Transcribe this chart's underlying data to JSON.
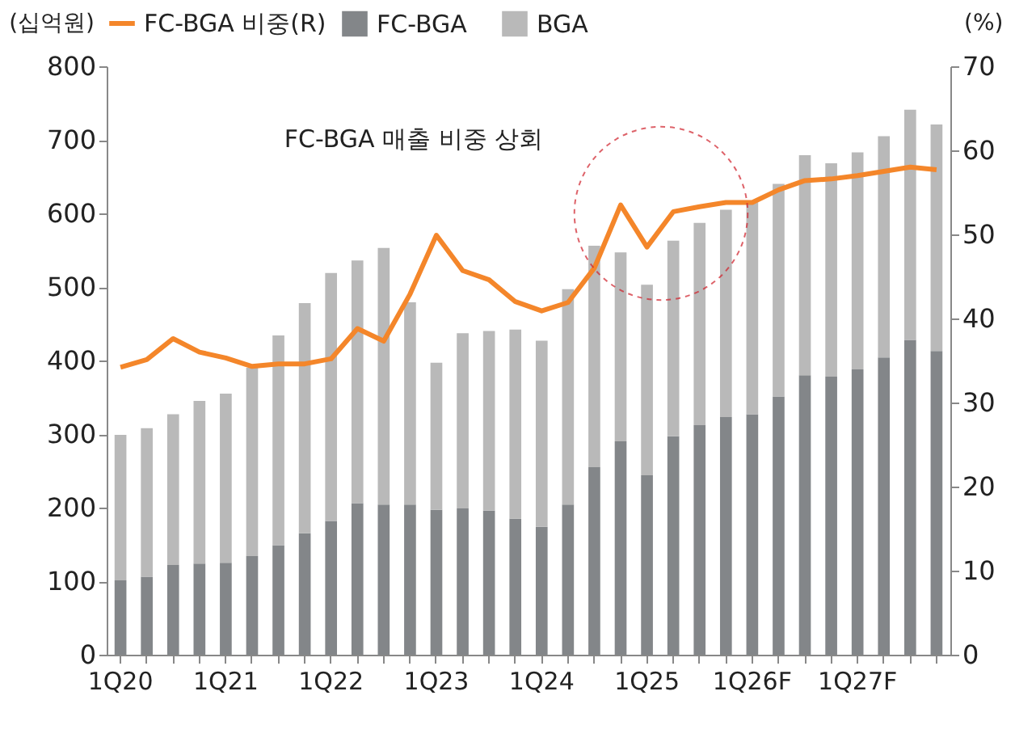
{
  "chart_data": {
    "type": "bar",
    "stacked": true,
    "categories": [
      "1Q20",
      null,
      null,
      null,
      "1Q21",
      null,
      null,
      null,
      "1Q22",
      null,
      null,
      null,
      "1Q23",
      null,
      null,
      null,
      "1Q24",
      null,
      null,
      null,
      "1Q25",
      null,
      null,
      null,
      "1Q26F",
      null,
      null,
      null,
      "1Q27F",
      null,
      null,
      null
    ],
    "ylabel": "(십억원)",
    "y2label": "(%)",
    "ylim": [
      0,
      800
    ],
    "yticks": [
      0,
      100,
      200,
      300,
      400,
      500,
      600,
      700,
      800
    ],
    "y2lim": [
      0,
      70
    ],
    "y2ticks": [
      0,
      10,
      20,
      30,
      40,
      50,
      60,
      70
    ],
    "legend": "top",
    "grid": false,
    "annotations": [
      "FC-BGA 매출 비중 상회"
    ],
    "series": [
      {
        "name": "FC-BGA",
        "color": "#838689",
        "values": [
          101,
          106,
          122,
          124,
          125,
          134,
          149,
          165,
          182,
          206,
          204,
          204,
          197,
          199,
          196,
          185,
          174,
          204,
          255,
          290,
          244,
          297,
          312,
          323,
          327,
          351,
          380,
          378,
          388,
          404,
          428,
          413
        ]
      },
      {
        "name": "BGA",
        "color": "#b9b9b9",
        "values": [
          198,
          202,
          205,
          221,
          230,
          256,
          285,
          313,
          337,
          330,
          349,
          275,
          200,
          238,
          244,
          257,
          253,
          293,
          301,
          257,
          259,
          266,
          275,
          282,
          288,
          289,
          299,
          290,
          295,
          301,
          313,
          308
        ]
      },
      {
        "name": "FC-BGA 비중(R)",
        "type": "line",
        "axis": "y2",
        "color": "#f4862a",
        "values": [
          34.2,
          35.1,
          37.6,
          36.0,
          35.3,
          34.3,
          34.6,
          34.6,
          35.2,
          38.8,
          37.3,
          42.9,
          49.9,
          45.7,
          44.6,
          42.0,
          40.9,
          41.9,
          46.0,
          53.5,
          48.5,
          52.7,
          53.3,
          53.8,
          53.8,
          55.3,
          56.4,
          56.6,
          57.0,
          57.5,
          58.0,
          57.7
        ]
      }
    ]
  }
}
